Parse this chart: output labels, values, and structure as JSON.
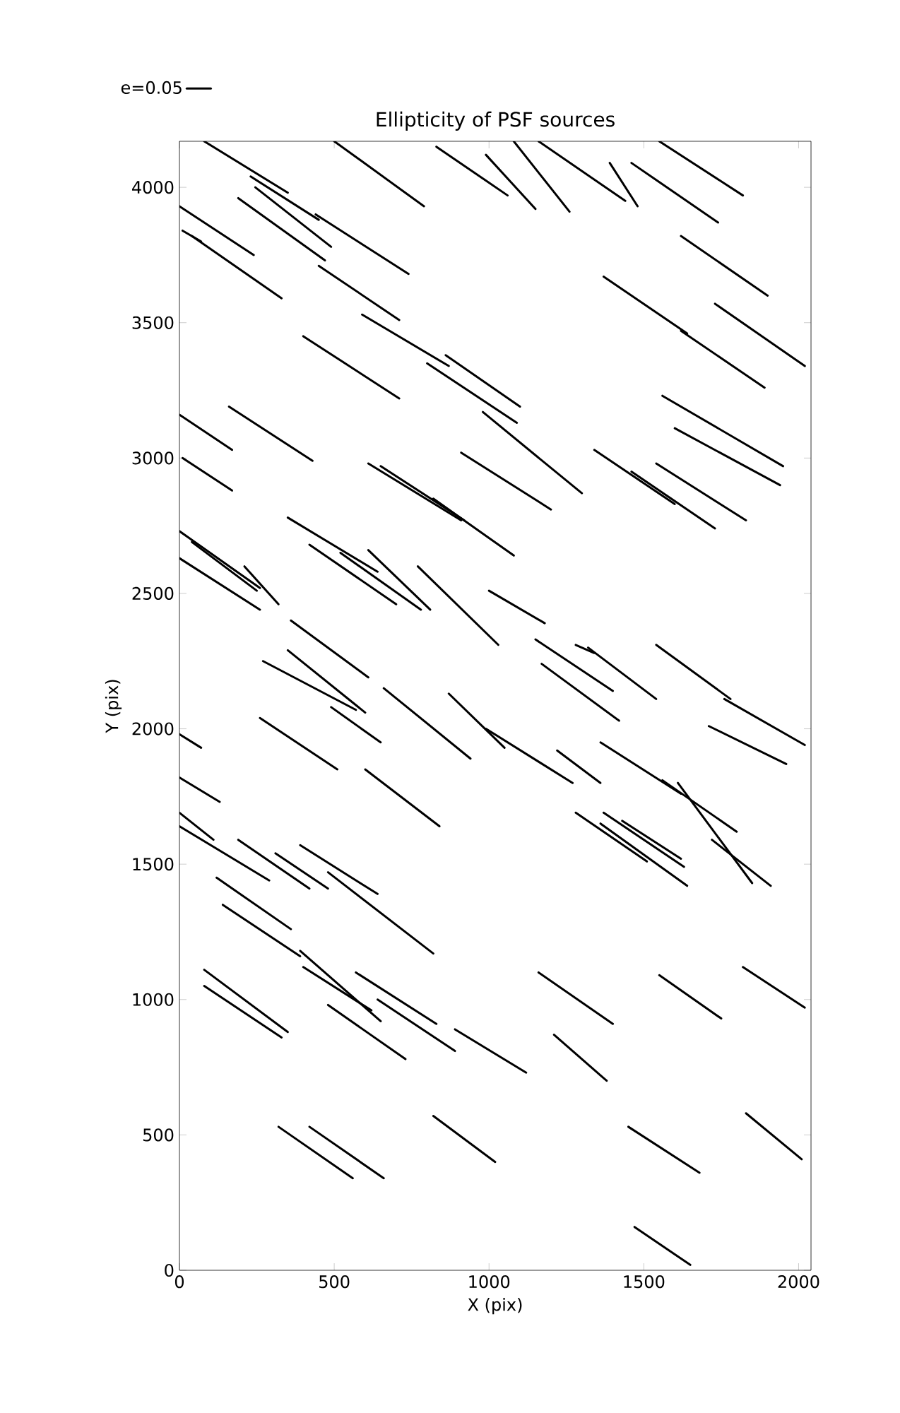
{
  "chart_data": {
    "type": "line",
    "title": "Ellipticity of PSF sources",
    "xlabel": "X (pix)",
    "ylabel": "Y (pix)",
    "xlim": [
      0,
      2040
    ],
    "ylim": [
      0,
      4170
    ],
    "xticks": [
      0,
      500,
      1000,
      1500,
      2000
    ],
    "yticks": [
      0,
      500,
      1000,
      1500,
      2000,
      2500,
      3000,
      3500,
      4000
    ],
    "grid": false,
    "legend": "top left",
    "line_style": "solid",
    "marker": "none",
    "series": [
      {
        "name": "e=0.05",
        "color": "#000000",
        "x": [
          80,
          350
        ],
        "values": [
          4170,
          3980
        ]
      },
      {
        "color": "#000000",
        "x": [
          230,
          450
        ],
        "values": [
          4040,
          3880
        ]
      },
      {
        "color": "#000000",
        "x": [
          245,
          490
        ],
        "values": [
          4000,
          3780
        ]
      },
      {
        "color": "#000000",
        "x": [
          0,
          240
        ],
        "values": [
          3930,
          3750
        ]
      },
      {
        "color": "#000000",
        "x": [
          190,
          470
        ],
        "values": [
          3960,
          3730
        ]
      },
      {
        "color": "#000000",
        "x": [
          10,
          70
        ],
        "values": [
          3840,
          3800
        ]
      },
      {
        "color": "#000000",
        "x": [
          40,
          330
        ],
        "values": [
          3820,
          3590
        ]
      },
      {
        "color": "#000000",
        "x": [
          440,
          740
        ],
        "values": [
          3900,
          3680
        ]
      },
      {
        "color": "#000000",
        "x": [
          450,
          710
        ],
        "values": [
          3710,
          3510
        ]
      },
      {
        "color": "#000000",
        "x": [
          500,
          790
        ],
        "values": [
          4170,
          3930
        ]
      },
      {
        "color": "#000000",
        "x": [
          830,
          1060
        ],
        "values": [
          4150,
          3970
        ]
      },
      {
        "color": "#000000",
        "x": [
          990,
          1150
        ],
        "values": [
          4120,
          3920
        ]
      },
      {
        "color": "#000000",
        "x": [
          1080,
          1260
        ],
        "values": [
          4170,
          3910
        ]
      },
      {
        "color": "#000000",
        "x": [
          1160,
          1440
        ],
        "values": [
          4170,
          3950
        ]
      },
      {
        "color": "#000000",
        "x": [
          1390,
          1480
        ],
        "values": [
          4090,
          3930
        ]
      },
      {
        "color": "#000000",
        "x": [
          1460,
          1740
        ],
        "values": [
          4090,
          3870
        ]
      },
      {
        "color": "#000000",
        "x": [
          1550,
          1820
        ],
        "values": [
          4170,
          3970
        ]
      },
      {
        "color": "#000000",
        "x": [
          1620,
          1900
        ],
        "values": [
          3820,
          3600
        ]
      },
      {
        "color": "#000000",
        "x": [
          1370,
          1640
        ],
        "values": [
          3670,
          3460
        ]
      },
      {
        "color": "#000000",
        "x": [
          1620,
          1890
        ],
        "values": [
          3470,
          3260
        ]
      },
      {
        "color": "#000000",
        "x": [
          1730,
          2020
        ],
        "values": [
          3570,
          3340
        ]
      },
      {
        "color": "#000000",
        "x": [
          1560,
          1950
        ],
        "values": [
          3230,
          2970
        ]
      },
      {
        "color": "#000000",
        "x": [
          1600,
          1940
        ],
        "values": [
          3110,
          2900
        ]
      },
      {
        "color": "#000000",
        "x": [
          400,
          710
        ],
        "values": [
          3450,
          3220
        ]
      },
      {
        "color": "#000000",
        "x": [
          590,
          870
        ],
        "values": [
          3530,
          3340
        ]
      },
      {
        "color": "#000000",
        "x": [
          860,
          1100
        ],
        "values": [
          3380,
          3190
        ]
      },
      {
        "color": "#000000",
        "x": [
          800,
          1090
        ],
        "values": [
          3350,
          3130
        ]
      },
      {
        "color": "#000000",
        "x": [
          980,
          1300
        ],
        "values": [
          3170,
          2870
        ]
      },
      {
        "color": "#000000",
        "x": [
          910,
          1200
        ],
        "values": [
          3020,
          2810
        ]
      },
      {
        "color": "#000000",
        "x": [
          820,
          1080
        ],
        "values": [
          2850,
          2640
        ]
      },
      {
        "color": "#000000",
        "x": [
          610,
          910
        ],
        "values": [
          2980,
          2770
        ]
      },
      {
        "color": "#000000",
        "x": [
          650,
          920
        ],
        "values": [
          2970,
          2770
        ]
      },
      {
        "color": "#000000",
        "x": [
          0,
          170
        ],
        "values": [
          3160,
          3030
        ]
      },
      {
        "color": "#000000",
        "x": [
          160,
          430
        ],
        "values": [
          3190,
          2990
        ]
      },
      {
        "color": "#000000",
        "x": [
          10,
          170
        ],
        "values": [
          3000,
          2880
        ]
      },
      {
        "color": "#000000",
        "x": [
          1340,
          1600
        ],
        "values": [
          3030,
          2830
        ]
      },
      {
        "color": "#000000",
        "x": [
          1460,
          1730
        ],
        "values": [
          2950,
          2740
        ]
      },
      {
        "color": "#000000",
        "x": [
          1540,
          1830
        ],
        "values": [
          2980,
          2770
        ]
      },
      {
        "color": "#000000",
        "x": [
          0,
          260
        ],
        "values": [
          2730,
          2520
        ]
      },
      {
        "color": "#000000",
        "x": [
          40,
          250
        ],
        "values": [
          2690,
          2510
        ]
      },
      {
        "color": "#000000",
        "x": [
          210,
          320
        ],
        "values": [
          2600,
          2460
        ]
      },
      {
        "color": "#000000",
        "x": [
          0,
          260
        ],
        "values": [
          2630,
          2440
        ]
      },
      {
        "color": "#000000",
        "x": [
          350,
          640
        ],
        "values": [
          2780,
          2580
        ]
      },
      {
        "color": "#000000",
        "x": [
          420,
          700
        ],
        "values": [
          2680,
          2460
        ]
      },
      {
        "color": "#000000",
        "x": [
          520,
          780
        ],
        "values": [
          2650,
          2440
        ]
      },
      {
        "color": "#000000",
        "x": [
          610,
          810
        ],
        "values": [
          2660,
          2440
        ]
      },
      {
        "color": "#000000",
        "x": [
          770,
          1030
        ],
        "values": [
          2600,
          2310
        ]
      },
      {
        "color": "#000000",
        "x": [
          1000,
          1180
        ],
        "values": [
          2510,
          2390
        ]
      },
      {
        "color": "#000000",
        "x": [
          360,
          610
        ],
        "values": [
          2400,
          2190
        ]
      },
      {
        "color": "#000000",
        "x": [
          270,
          570
        ],
        "values": [
          2250,
          2070
        ]
      },
      {
        "color": "#000000",
        "x": [
          350,
          600
        ],
        "values": [
          2290,
          2060
        ]
      },
      {
        "color": "#000000",
        "x": [
          490,
          650
        ],
        "values": [
          2080,
          1950
        ]
      },
      {
        "color": "#000000",
        "x": [
          660,
          940
        ],
        "values": [
          2150,
          1890
        ]
      },
      {
        "color": "#000000",
        "x": [
          870,
          1050
        ],
        "values": [
          2130,
          1930
        ]
      },
      {
        "color": "#000000",
        "x": [
          990,
          1270
        ],
        "values": [
          2000,
          1800
        ]
      },
      {
        "color": "#000000",
        "x": [
          1150,
          1400
        ],
        "values": [
          2330,
          2140
        ]
      },
      {
        "color": "#000000",
        "x": [
          1280,
          1340
        ],
        "values": [
          2310,
          2280
        ]
      },
      {
        "color": "#000000",
        "x": [
          1170,
          1420
        ],
        "values": [
          2240,
          2030
        ]
      },
      {
        "color": "#000000",
        "x": [
          1320,
          1540
        ],
        "values": [
          2300,
          2110
        ]
      },
      {
        "color": "#000000",
        "x": [
          1540,
          1780
        ],
        "values": [
          2310,
          2110
        ]
      },
      {
        "color": "#000000",
        "x": [
          1760,
          2020
        ],
        "values": [
          2110,
          1940
        ]
      },
      {
        "color": "#000000",
        "x": [
          1710,
          1960
        ],
        "values": [
          2010,
          1870
        ]
      },
      {
        "color": "#000000",
        "x": [
          1220,
          1360
        ],
        "values": [
          1920,
          1800
        ]
      },
      {
        "color": "#000000",
        "x": [
          1360,
          1620
        ],
        "values": [
          1950,
          1760
        ]
      },
      {
        "color": "#000000",
        "x": [
          0,
          70
        ],
        "values": [
          1980,
          1930
        ]
      },
      {
        "color": "#000000",
        "x": [
          0,
          130
        ],
        "values": [
          1820,
          1730
        ]
      },
      {
        "color": "#000000",
        "x": [
          260,
          510
        ],
        "values": [
          2040,
          1850
        ]
      },
      {
        "color": "#000000",
        "x": [
          600,
          840
        ],
        "values": [
          1850,
          1640
        ]
      },
      {
        "color": "#000000",
        "x": [
          0,
          110
        ],
        "values": [
          1690,
          1590
        ]
      },
      {
        "color": "#000000",
        "x": [
          0,
          290
        ],
        "values": [
          1640,
          1440
        ]
      },
      {
        "color": "#000000",
        "x": [
          190,
          420
        ],
        "values": [
          1590,
          1410
        ]
      },
      {
        "color": "#000000",
        "x": [
          310,
          480
        ],
        "values": [
          1540,
          1410
        ]
      },
      {
        "color": "#000000",
        "x": [
          390,
          640
        ],
        "values": [
          1570,
          1390
        ]
      },
      {
        "color": "#000000",
        "x": [
          480,
          820
        ],
        "values": [
          1470,
          1170
        ]
      },
      {
        "color": "#000000",
        "x": [
          120,
          360
        ],
        "values": [
          1450,
          1260
        ]
      },
      {
        "color": "#000000",
        "x": [
          140,
          390
        ],
        "values": [
          1350,
          1160
        ]
      },
      {
        "color": "#000000",
        "x": [
          1280,
          1510
        ],
        "values": [
          1690,
          1510
        ]
      },
      {
        "color": "#000000",
        "x": [
          1370,
          1630
        ],
        "values": [
          1690,
          1490
        ]
      },
      {
        "color": "#000000",
        "x": [
          1430,
          1620
        ],
        "values": [
          1660,
          1520
        ]
      },
      {
        "color": "#000000",
        "x": [
          1360,
          1640
        ],
        "values": [
          1650,
          1420
        ]
      },
      {
        "color": "#000000",
        "x": [
          1560,
          1800
        ],
        "values": [
          1810,
          1620
        ]
      },
      {
        "color": "#000000",
        "x": [
          1610,
          1850
        ],
        "values": [
          1800,
          1430
        ]
      },
      {
        "color": "#000000",
        "x": [
          1720,
          1910
        ],
        "values": [
          1590,
          1420
        ]
      },
      {
        "color": "#000000",
        "x": [
          80,
          350
        ],
        "values": [
          1110,
          880
        ]
      },
      {
        "color": "#000000",
        "x": [
          80,
          330
        ],
        "values": [
          1050,
          860
        ]
      },
      {
        "color": "#000000",
        "x": [
          390,
          650
        ],
        "values": [
          1180,
          920
        ]
      },
      {
        "color": "#000000",
        "x": [
          400,
          620
        ],
        "values": [
          1120,
          960
        ]
      },
      {
        "color": "#000000",
        "x": [
          570,
          830
        ],
        "values": [
          1100,
          910
        ]
      },
      {
        "color": "#000000",
        "x": [
          640,
          890
        ],
        "values": [
          1000,
          810
        ]
      },
      {
        "color": "#000000",
        "x": [
          480,
          730
        ],
        "values": [
          980,
          780
        ]
      },
      {
        "color": "#000000",
        "x": [
          890,
          1120
        ],
        "values": [
          890,
          730
        ]
      },
      {
        "color": "#000000",
        "x": [
          1160,
          1400
        ],
        "values": [
          1100,
          910
        ]
      },
      {
        "color": "#000000",
        "x": [
          1210,
          1380
        ],
        "values": [
          870,
          700
        ]
      },
      {
        "color": "#000000",
        "x": [
          1550,
          1750
        ],
        "values": [
          1090,
          930
        ]
      },
      {
        "color": "#000000",
        "x": [
          1820,
          2020
        ],
        "values": [
          1120,
          970
        ]
      },
      {
        "color": "#000000",
        "x": [
          320,
          560
        ],
        "values": [
          530,
          340
        ]
      },
      {
        "color": "#000000",
        "x": [
          420,
          660
        ],
        "values": [
          530,
          340
        ]
      },
      {
        "color": "#000000",
        "x": [
          820,
          1020
        ],
        "values": [
          570,
          400
        ]
      },
      {
        "color": "#000000",
        "x": [
          1450,
          1680
        ],
        "values": [
          530,
          360
        ]
      },
      {
        "color": "#000000",
        "x": [
          1830,
          2010
        ],
        "values": [
          580,
          410
        ]
      },
      {
        "color": "#000000",
        "x": [
          1470,
          1650
        ],
        "values": [
          160,
          20
        ]
      }
    ]
  }
}
